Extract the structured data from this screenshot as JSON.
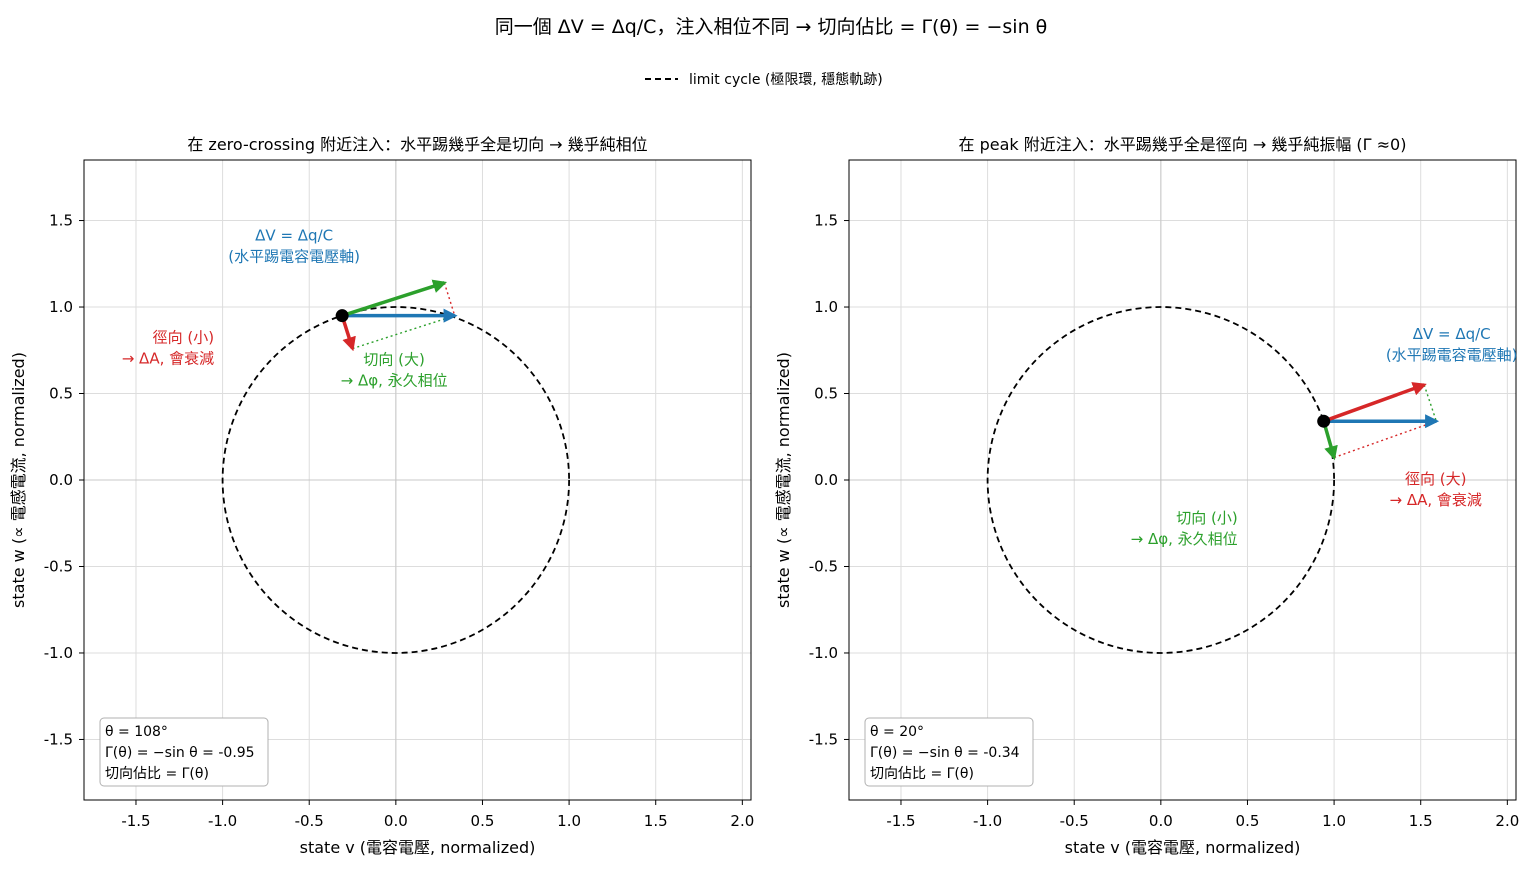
{
  "figure": {
    "suptitle": "同一個 ΔV = Δq/C，注入相位不同 → 切向佔比 = Γ(θ) = −sin θ",
    "legend_label": "limit cycle (極限環, 穩態軌跡)"
  },
  "chart_data": [
    {
      "type": "scatter",
      "title": "在 zero-crossing 附近注入：水平踢幾乎全是切向 → 幾乎純相位",
      "xlabel": "state v (電容電壓, normalized)",
      "ylabel": "state w (∝ 電感電流, normalized)",
      "xlim": [
        -1.8,
        2.05
      ],
      "ylim": [
        -1.85,
        1.85
      ],
      "xticks": [
        -1.5,
        -1.0,
        -0.5,
        0.0,
        0.5,
        1.0,
        1.5,
        2.0
      ],
      "yticks": [
        -1.5,
        -1.0,
        -0.5,
        0.0,
        0.5,
        1.0,
        1.5
      ],
      "grid": true,
      "limit_cycle_radius": 1.0,
      "theta_deg": 108,
      "gamma": -0.95,
      "point": [
        -0.31,
        0.95
      ],
      "kick": [
        0.65,
        0.0
      ],
      "tangential_end": [
        0.28,
        1.14
      ],
      "radial_end": [
        -0.25,
        0.76
      ],
      "colors": {
        "kick": "#1f77b4",
        "tangential": "#2ca02c",
        "radial": "#d62728",
        "cycle": "#000000"
      },
      "labels": [
        {
          "text": "ΔV = Δq/C",
          "color": "#1f77b4",
          "role": "kick"
        },
        {
          "text": "(水平踢電容電壓軸)",
          "color": "#1f77b4",
          "role": "kick"
        },
        {
          "text": "切向 (大)",
          "color": "#2ca02c",
          "role": "tangential"
        },
        {
          "text": "→ Δφ, 永久相位",
          "color": "#2ca02c",
          "role": "tangential"
        },
        {
          "text": "徑向 (小)",
          "color": "#d62728",
          "role": "radial"
        },
        {
          "text": "→ ΔA, 會衰減",
          "color": "#d62728",
          "role": "radial"
        }
      ],
      "infobox": [
        "θ = 108°",
        "Γ(θ) = −sin θ = -0.95",
        "切向佔比 = Γ(θ)"
      ]
    },
    {
      "type": "scatter",
      "title": "在 peak 附近注入：水平踢幾乎全是徑向 → 幾乎純振幅 (Γ ≈0)",
      "xlabel": "state v (電容電壓, normalized)",
      "ylabel": "state w (∝ 電感電流, normalized)",
      "xlim": [
        -1.8,
        2.05
      ],
      "ylim": [
        -1.85,
        1.85
      ],
      "xticks": [
        -1.5,
        -1.0,
        -0.5,
        0.0,
        0.5,
        1.0,
        1.5,
        2.0
      ],
      "yticks": [
        -1.5,
        -1.0,
        -0.5,
        0.0,
        0.5,
        1.0,
        1.5
      ],
      "grid": true,
      "limit_cycle_radius": 1.0,
      "theta_deg": 20,
      "gamma": -0.34,
      "point": [
        0.94,
        0.34
      ],
      "kick": [
        0.65,
        0.0
      ],
      "tangential_end": [
        1.0,
        0.13
      ],
      "radial_end": [
        1.52,
        0.55
      ],
      "colors": {
        "kick": "#1f77b4",
        "tangential": "#2ca02c",
        "radial": "#d62728",
        "cycle": "#000000"
      },
      "labels": [
        {
          "text": "ΔV = Δq/C",
          "color": "#1f77b4",
          "role": "kick"
        },
        {
          "text": "(水平踢電容電壓軸)",
          "color": "#1f77b4",
          "role": "kick"
        },
        {
          "text": "切向 (小)",
          "color": "#2ca02c",
          "role": "tangential"
        },
        {
          "text": "→ Δφ, 永久相位",
          "color": "#2ca02c",
          "role": "tangential"
        },
        {
          "text": "徑向 (大)",
          "color": "#d62728",
          "role": "radial"
        },
        {
          "text": "→ ΔA, 會衰減",
          "color": "#d62728",
          "role": "radial"
        }
      ],
      "infobox": [
        "θ = 20°",
        "Γ(θ) = −sin θ = -0.34",
        "切向佔比 = Γ(θ)"
      ]
    }
  ]
}
